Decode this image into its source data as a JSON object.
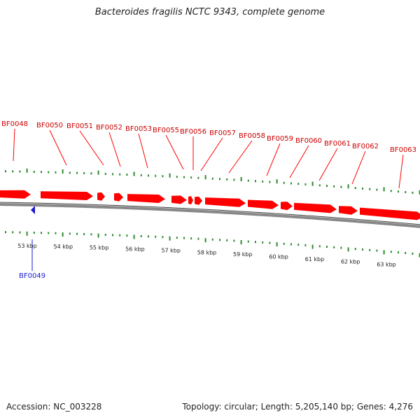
{
  "title": "Bacteroides fragilis NCTC 9343, complete genome",
  "accession": "Accession: NC_003228",
  "summary": "Topology: circular; Length: 5,205,140 bp; Genes: 4,276",
  "colors": {
    "forward_gene": "#ff0000",
    "forward_label": "#cc0000",
    "reverse_gene": "#1a1acc",
    "reverse_label": "#1a1acc",
    "tick": "#2e8b2e",
    "backbone": "#888888"
  },
  "scale": {
    "unit": "kbp",
    "labels": [
      "53 kbp",
      "54 kbp",
      "55 kbp",
      "56 kbp",
      "57 kbp",
      "58 kbp",
      "59 kbp",
      "60 kbp",
      "61 kbp",
      "62 kbp",
      "63 kbp"
    ]
  },
  "genes": [
    {
      "locus": "BF0048",
      "strand": "+"
    },
    {
      "locus": "BF0049",
      "strand": "-"
    },
    {
      "locus": "BF0050",
      "strand": "+"
    },
    {
      "locus": "BF0051",
      "strand": "+"
    },
    {
      "locus": "BF0052",
      "strand": "+"
    },
    {
      "locus": "BF0053",
      "strand": "+"
    },
    {
      "locus": "BF0055",
      "strand": "+"
    },
    {
      "locus": "BF0056",
      "strand": "+"
    },
    {
      "locus": "BF0057",
      "strand": "+"
    },
    {
      "locus": "BF0058",
      "strand": "+"
    },
    {
      "locus": "BF0059",
      "strand": "+"
    },
    {
      "locus": "BF0060",
      "strand": "+"
    },
    {
      "locus": "BF0061",
      "strand": "+"
    },
    {
      "locus": "BF0062",
      "strand": "+"
    },
    {
      "locus": "BF0063",
      "strand": "+"
    }
  ]
}
